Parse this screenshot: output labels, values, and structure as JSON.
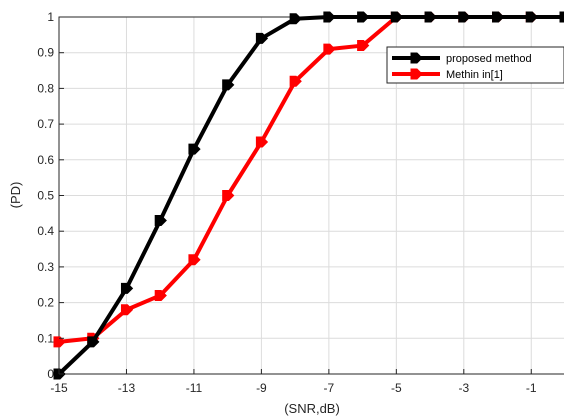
{
  "chart_data": {
    "type": "line",
    "title": "",
    "xlabel": "(SNR,dB)",
    "ylabel": "(PD)",
    "xlim": [
      -15,
      0
    ],
    "ylim": [
      0,
      1
    ],
    "xticks": [
      -15,
      -13,
      -11,
      -9,
      -7,
      -5,
      -3,
      -1
    ],
    "yticks": [
      0,
      0.1,
      0.2,
      0.3,
      0.4,
      0.5,
      0.6,
      0.7,
      0.8,
      0.9,
      1
    ],
    "ytick_labels": [
      "0",
      "0.1",
      "0.2",
      "0.3",
      "0.4",
      "0.5",
      "0.6",
      "0.7",
      "0.8",
      "0.9",
      "1"
    ],
    "grid": true,
    "legend_position": "top-right",
    "x": [
      -15,
      -14,
      -13,
      -12,
      -11,
      -10,
      -9,
      -8,
      -7,
      -6,
      -5,
      -4,
      -3,
      -2,
      -1,
      0
    ],
    "series": [
      {
        "name": "proposed method",
        "color": "#000000",
        "values": [
          0.0,
          0.09,
          0.24,
          0.43,
          0.63,
          0.81,
          0.94,
          0.995,
          1.0,
          1.0,
          1.0,
          1.0,
          1.0,
          1.0,
          1.0,
          1.0
        ]
      },
      {
        "name": "Methin in[1]",
        "color": "#ff0000",
        "values": [
          0.09,
          0.1,
          0.18,
          0.22,
          0.32,
          0.5,
          0.65,
          0.82,
          0.91,
          0.92,
          1.0,
          1.0,
          1.0,
          1.0,
          1.0,
          1.0
        ]
      }
    ]
  }
}
